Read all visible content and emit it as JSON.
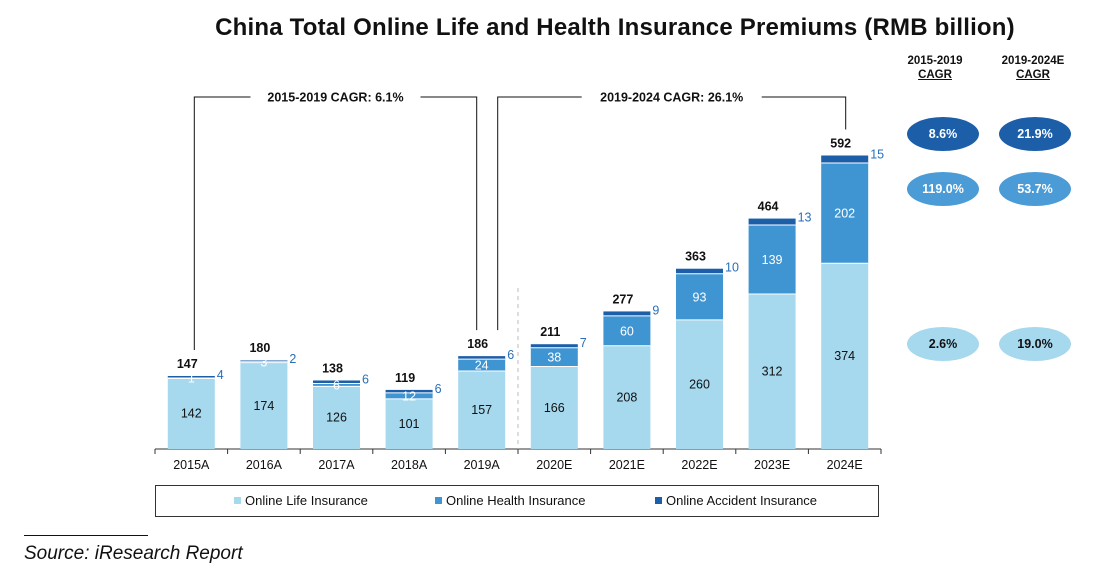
{
  "chart_data": {
    "type": "bar",
    "stacked": true,
    "title": "China Total Online Life and Health Insurance Premiums (RMB billion)",
    "categories": [
      "2015A",
      "2016A",
      "2017A",
      "2018A",
      "2019A",
      "2020E",
      "2021E",
      "2022E",
      "2023E",
      "2024E"
    ],
    "series": [
      {
        "name": "Online Life Insurance",
        "color": "#a6d8ee",
        "values": [
          142,
          174,
          126,
          101,
          157,
          166,
          208,
          260,
          312,
          374
        ]
      },
      {
        "name": "Online Health Insurance",
        "color": "#3f95d2",
        "values": [
          1,
          3,
          6,
          12,
          24,
          38,
          60,
          93,
          139,
          202
        ]
      },
      {
        "name": "Online Accident Insurance",
        "color": "#1c5ea8",
        "values": [
          4,
          2,
          6,
          6,
          6,
          7,
          9,
          10,
          13,
          15
        ]
      }
    ],
    "totals": [
      147,
      180,
      138,
      119,
      186,
      211,
      277,
      363,
      464,
      592
    ],
    "ylim": [
      0,
      620
    ],
    "brackets": [
      {
        "label": "2015-2019 CAGR: 6.1%",
        "from": "2015A",
        "to": "2019A"
      },
      {
        "label": "2019-2024 CAGR: 26.1%",
        "from": "2019A",
        "to": "2024E"
      }
    ],
    "legend_position": "bottom"
  },
  "cagr_table": {
    "headers": [
      {
        "line1": "2015-2019",
        "line2": "CAGR"
      },
      {
        "line1": "2019-2024E",
        "line2": "CAGR"
      }
    ],
    "rows": [
      {
        "series": "Online Accident Insurance",
        "bg": "#1c5ea8",
        "fg": "#ffffff",
        "values": [
          "8.6%",
          "21.9%"
        ]
      },
      {
        "series": "Online Health Insurance",
        "bg": "#4a9bd6",
        "fg": "#ffffff",
        "values": [
          "119.0%",
          "53.7%"
        ]
      },
      {
        "series": "Online Life Insurance",
        "bg": "#a6d8ee",
        "fg": "#111111",
        "values": [
          "2.6%",
          "19.0%"
        ]
      }
    ]
  },
  "source": "Source: iResearch Report"
}
